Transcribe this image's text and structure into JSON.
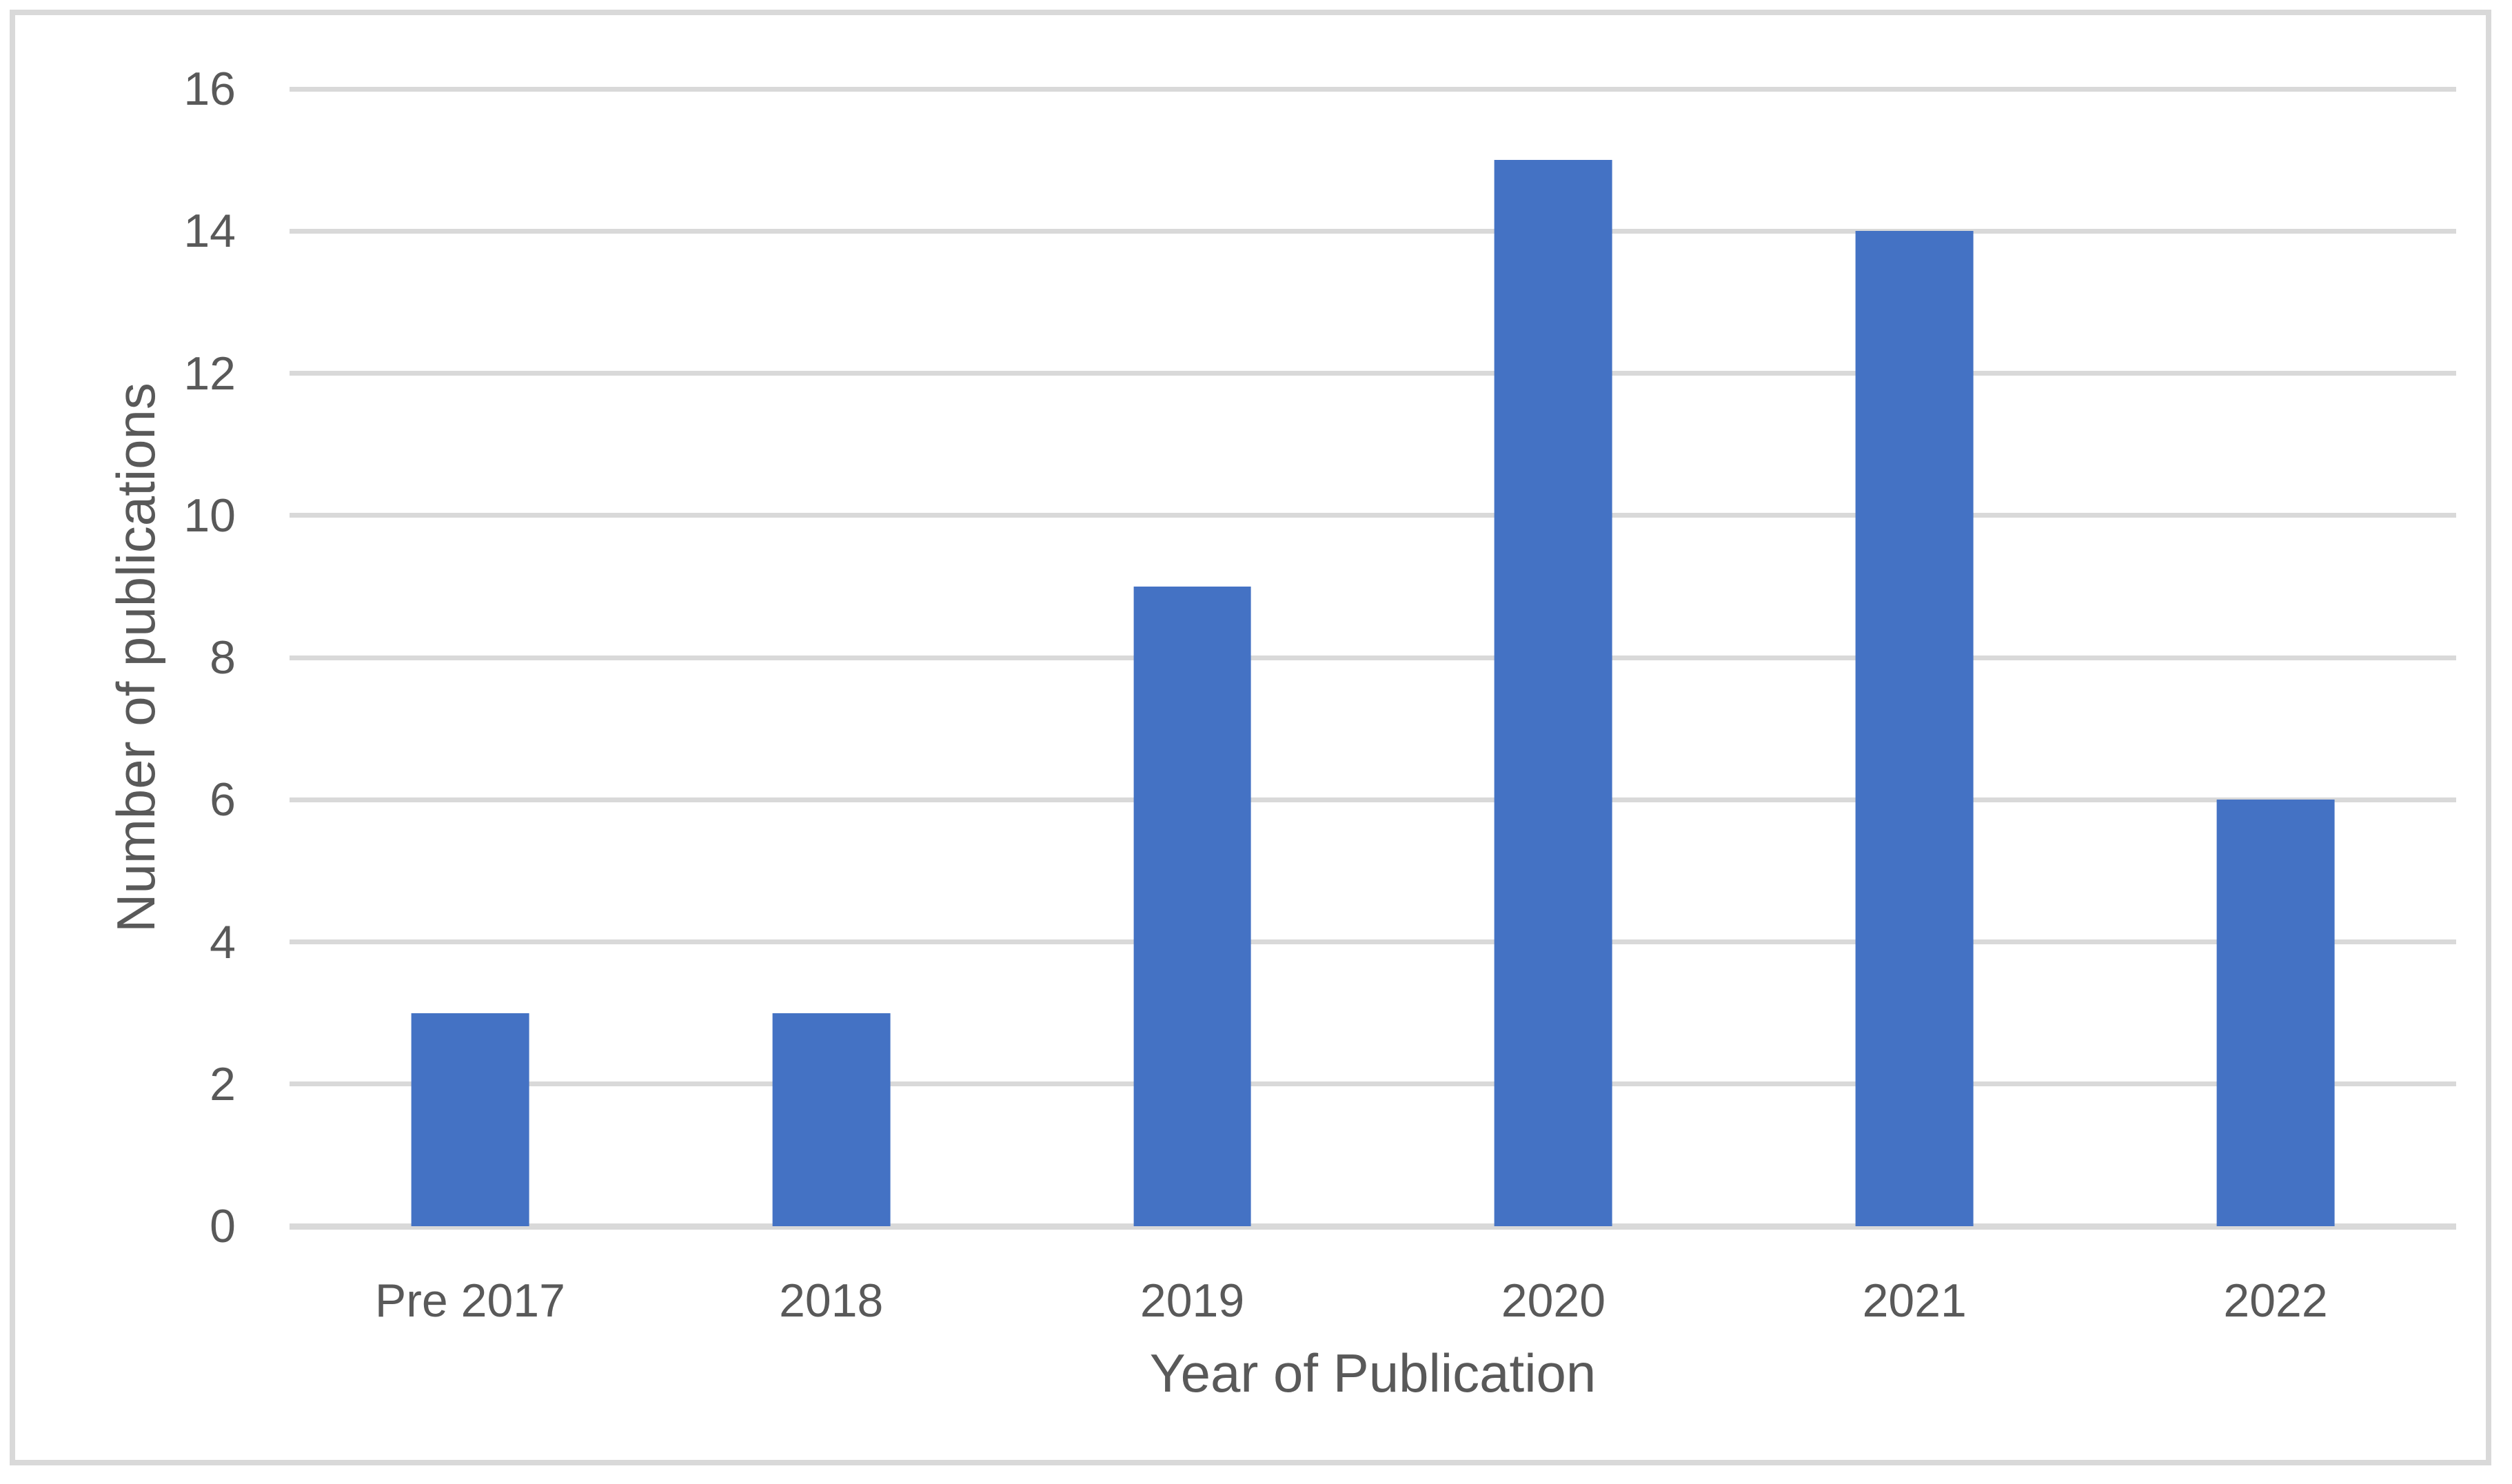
{
  "chart_data": {
    "type": "bar",
    "categories": [
      "Pre 2017",
      "2018",
      "2019",
      "2020",
      "2021",
      "2022"
    ],
    "values": [
      3,
      3,
      9,
      15,
      14,
      6
    ],
    "title": "",
    "xlabel": "Year of Publication",
    "ylabel": "Number of publications",
    "ylim": [
      0,
      16
    ],
    "yticks": [
      0,
      2,
      4,
      6,
      8,
      10,
      12,
      14,
      16
    ],
    "grid": "horizontal-only",
    "legend": "none",
    "colors": {
      "bar": "#4472c4",
      "gridline": "#d9d9d9",
      "axis_line": "#d9d9d9",
      "text": "#595959",
      "frame_border": "#d9d9d9",
      "background": "#ffffff"
    }
  }
}
